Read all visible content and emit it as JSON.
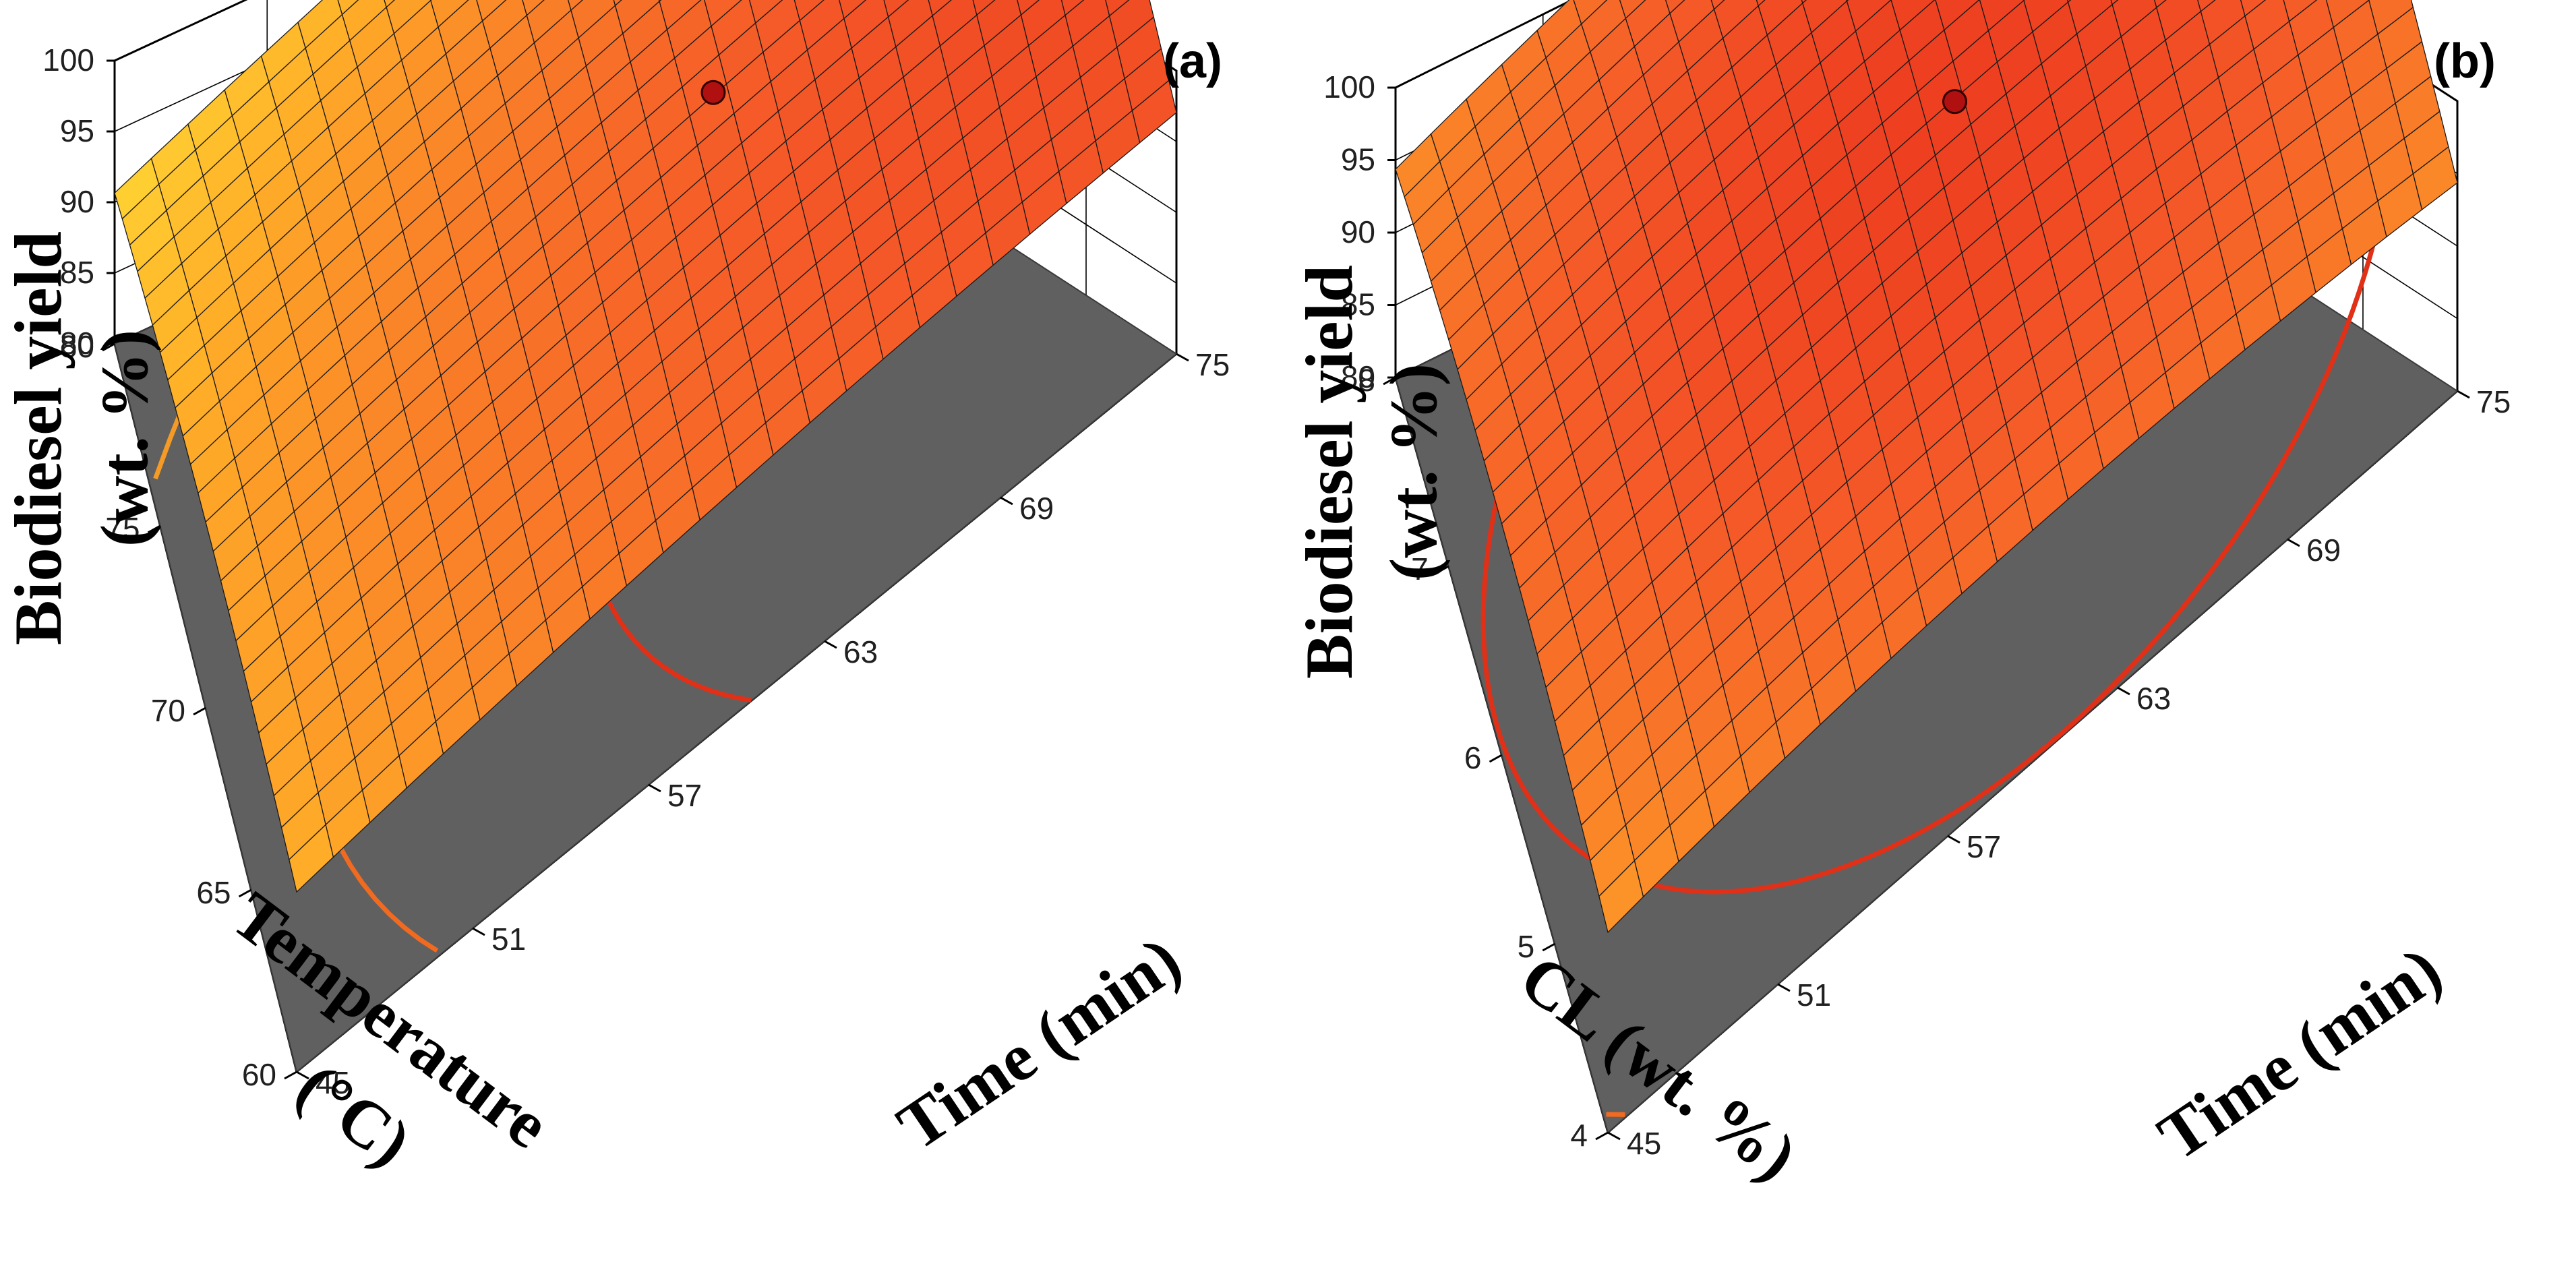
{
  "chart_data": [
    {
      "type": "surface3d",
      "panel_label": "(a)",
      "zlabel_line1": "Biodiesel yield",
      "zlabel_line2": "(wt. %)",
      "left_axis_title_line1": "Temperature",
      "left_axis_title_line2": "(°C)",
      "right_axis_title": "Time (min)",
      "left_axis_ticks": [
        "80",
        "75",
        "70",
        "65",
        "60"
      ],
      "right_axis_ticks": [
        "45",
        "51",
        "57",
        "63",
        "69",
        "75"
      ],
      "z_ticks": [
        "100",
        "95",
        "90",
        "85",
        "80"
      ],
      "zlim": [
        80,
        100
      ],
      "left_range": [
        80,
        60
      ],
      "right_range": [
        45,
        75
      ],
      "model": {
        "max": 97.5,
        "c1": 0.72,
        "c2": 1.0,
        "coefA": 5.8,
        "coefB": 4.2,
        "coefAB": 0.5
      },
      "optimum_point": {
        "left_value": 69,
        "right_value": 62,
        "yield": 97.3
      },
      "contour_levels": [
        96,
        94,
        92,
        90,
        88
      ]
    },
    {
      "type": "surface3d",
      "panel_label": "(b)",
      "zlabel_line1": "Biodiesel yield",
      "zlabel_line2": "(wt. %)",
      "left_axis_title_line1": "CL (wt. %)",
      "left_axis_title_line2": "",
      "right_axis_title": "Time (min)",
      "left_axis_ticks": [
        "8",
        "7",
        "6",
        "5",
        "4"
      ],
      "right_axis_ticks": [
        "45",
        "51",
        "57",
        "63",
        "69",
        "75"
      ],
      "z_ticks": [
        "100",
        "95",
        "90",
        "85",
        "80"
      ],
      "zlim": [
        80,
        100
      ],
      "left_range": [
        8,
        4
      ],
      "right_range": [
        45,
        75
      ],
      "model": {
        "max": 98.0,
        "c1": 0.48,
        "c2": 0.52,
        "coefA": 7.5,
        "coefB": 7.5,
        "coefAB": 0.5
      },
      "optimum_point": {
        "left_value": 6,
        "right_value": 61,
        "yield": 97.8
      },
      "contour_levels": [
        96,
        94,
        92,
        90,
        88,
        86
      ]
    }
  ]
}
